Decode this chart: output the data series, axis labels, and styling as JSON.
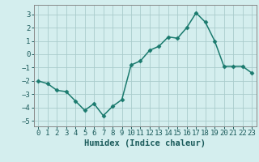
{
  "x": [
    0,
    1,
    2,
    3,
    4,
    5,
    6,
    7,
    8,
    9,
    10,
    11,
    12,
    13,
    14,
    15,
    16,
    17,
    18,
    19,
    20,
    21,
    22,
    23
  ],
  "y": [
    -2.0,
    -2.2,
    -2.7,
    -2.8,
    -3.5,
    -4.2,
    -3.7,
    -4.6,
    -3.9,
    -3.4,
    -0.8,
    -0.5,
    0.3,
    0.6,
    1.3,
    1.2,
    2.0,
    3.1,
    2.4,
    1.0,
    -0.9,
    -0.9,
    -0.9,
    -1.4
  ],
  "line_color": "#1a7a6e",
  "marker": "D",
  "marker_size": 2.5,
  "bg_color": "#d4eeee",
  "grid_color": "#aacccc",
  "xlabel": "Humidex (Indice chaleur)",
  "xlabel_fontsize": 7.5,
  "tick_fontsize": 6.5,
  "xlim": [
    -0.5,
    23.5
  ],
  "ylim": [
    -5.4,
    3.7
  ],
  "yticks": [
    -5,
    -4,
    -3,
    -2,
    -1,
    0,
    1,
    2,
    3
  ],
  "xticks": [
    0,
    1,
    2,
    3,
    4,
    5,
    6,
    7,
    8,
    9,
    10,
    11,
    12,
    13,
    14,
    15,
    16,
    17,
    18,
    19,
    20,
    21,
    22,
    23
  ],
  "line_width": 1.1
}
